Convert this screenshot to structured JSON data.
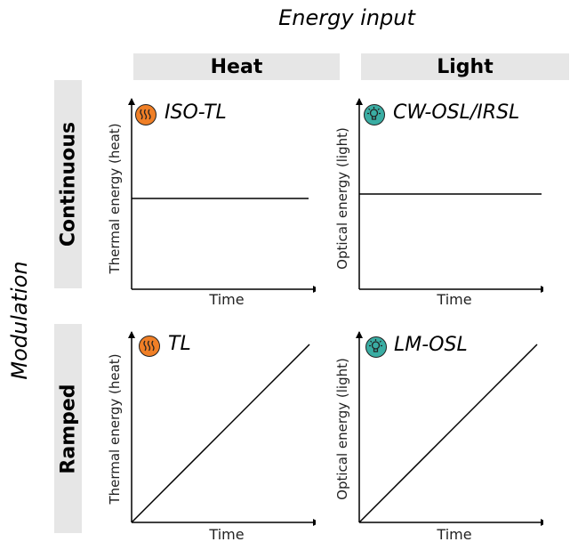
{
  "header": {
    "title": "Energy input"
  },
  "columns": [
    {
      "label": "Heat"
    },
    {
      "label": "Light"
    }
  ],
  "rows": [
    {
      "label": "Continuous"
    },
    {
      "label": "Ramped"
    }
  ],
  "side_title": "Modulation",
  "colors": {
    "heat_icon": "#f07f26",
    "light_icon": "#3aada3",
    "header_bg": "#e6e6e6"
  },
  "panels": [
    {
      "title": "ISO-TL",
      "icon": "heat-waves-icon",
      "ylabel": "Thermal energy (heat)",
      "xlabel": "Time"
    },
    {
      "title": "CW-OSL/IRSL",
      "icon": "light-bulb-icon",
      "ylabel": "Optical energy (light)",
      "xlabel": "Time"
    },
    {
      "title": "TL",
      "icon": "heat-waves-icon",
      "ylabel": "Thermal energy (heat)",
      "xlabel": "Time"
    },
    {
      "title": "LM-OSL",
      "icon": "light-bulb-icon",
      "ylabel": "Optical energy (light)",
      "xlabel": "Time"
    }
  ]
}
